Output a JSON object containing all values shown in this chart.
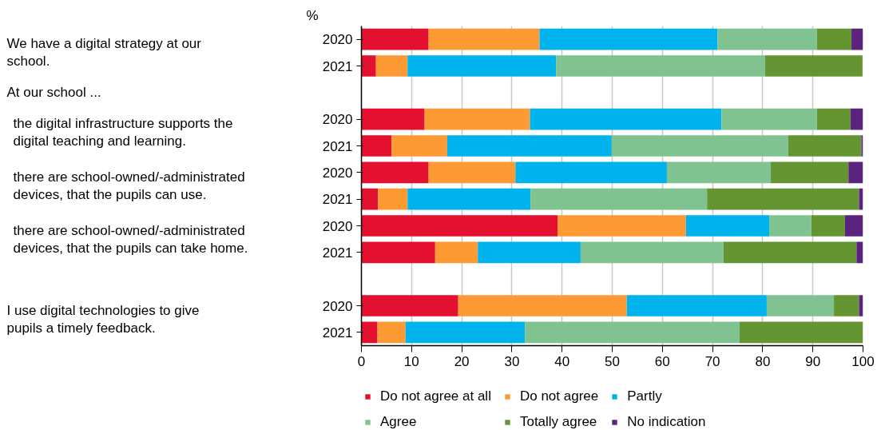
{
  "chart_data": {
    "type": "bar",
    "orientation": "horizontal",
    "stacked": true,
    "xlabel": "%",
    "categories": [
      "2020",
      "2021",
      null,
      "2020",
      "2021",
      "2020",
      "2021",
      "2020",
      "2021",
      null,
      "2020",
      "2021"
    ],
    "series": [
      {
        "name": "Do not agree at all",
        "color": "#e31030",
        "values": [
          13.4,
          2.9,
          null,
          12.6,
          6.0,
          13.4,
          3.3,
          39.1,
          14.7,
          null,
          19.3,
          3.2
        ]
      },
      {
        "name": "Do not agree",
        "color": "#fd9a34",
        "values": [
          22.1,
          6.3,
          null,
          21.0,
          11.1,
          17.3,
          5.9,
          25.6,
          8.5,
          null,
          33.6,
          5.6
        ]
      },
      {
        "name": "Partly",
        "color": "#00b3ec",
        "values": [
          35.5,
          29.6,
          null,
          38.2,
          32.8,
          30.2,
          24.5,
          16.6,
          20.5,
          null,
          27.9,
          23.8
        ]
      },
      {
        "name": "Agree",
        "color": "#80c391",
        "values": [
          19.8,
          41.7,
          null,
          19.0,
          35.2,
          20.7,
          35.2,
          8.4,
          28.5,
          null,
          13.4,
          42.8
        ]
      },
      {
        "name": "Totally agree",
        "color": "#659433",
        "values": [
          6.9,
          19.4,
          null,
          6.7,
          14.6,
          15.5,
          30.3,
          6.7,
          26.5,
          null,
          5.0,
          24.6
        ]
      },
      {
        "name": "No indication",
        "color": "#5c237e",
        "values": [
          2.3,
          null,
          null,
          2.5,
          0.3,
          2.9,
          0.8,
          3.6,
          1.3,
          null,
          0.8,
          null
        ]
      }
    ],
    "annotations": [
      "We have a digital strategy at our school.",
      "At our school ...",
      "the digital infrastructure supports the digital teaching and learning.",
      "there are school-owned/-administrated devices, that the pupils can use.",
      "there are school-owned/-administrated devices, that the pupils can take home.",
      "I use digital technologies to give pupils a timely feedback."
    ],
    "xlim": [
      0,
      100
    ],
    "xticks": [
      0,
      10,
      20,
      30,
      40,
      50,
      60,
      70,
      80,
      90,
      100
    ],
    "grid": "x",
    "legend": "bottom"
  }
}
